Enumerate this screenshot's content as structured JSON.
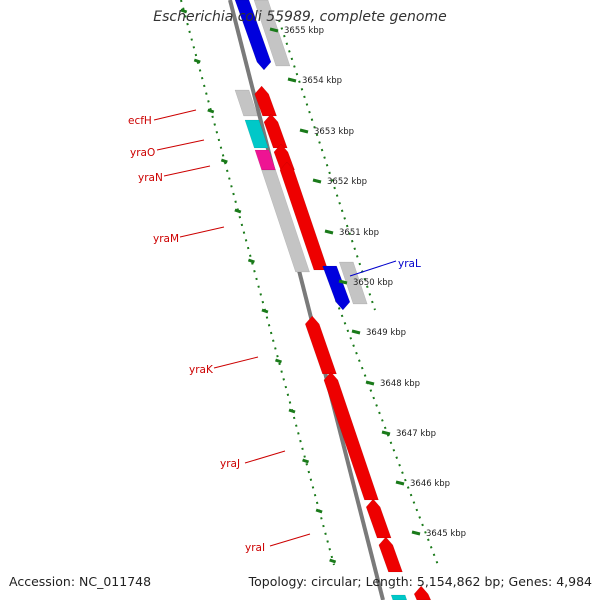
{
  "title": "Escherichia coli 55989, complete genome",
  "accession": "Accession: NC_011748",
  "topology": "Topology: circular; Length: 5,154,862 bp; Genes: 4,984",
  "colors": {
    "backbone": "#7a7a7a",
    "tick": "#1a7a1a",
    "red_gene": "#ee0000",
    "blue_gene": "#0000dd",
    "cyan_gene": "#00c8c8",
    "magenta_gene": "#ee1493",
    "grey_gene": "#c4c4c4",
    "red_label": "#cc0000",
    "blue_label": "#0000cc"
  },
  "kbp_labels": [
    "3655 kbp",
    "3654 kbp",
    "3653 kbp",
    "3652 kbp",
    "3651 kbp",
    "3650 kbp",
    "3649 kbp",
    "3648 kbp",
    "3647 kbp",
    "3646 kbp",
    "3645 kbp"
  ],
  "genes": [
    {
      "name": "ecfH",
      "color": "red"
    },
    {
      "name": "yraO",
      "color": "red"
    },
    {
      "name": "yraN",
      "color": "red"
    },
    {
      "name": "yraM",
      "color": "red"
    },
    {
      "name": "yraL",
      "color": "blue"
    },
    {
      "name": "yraK",
      "color": "red"
    },
    {
      "name": "yraJ",
      "color": "red"
    },
    {
      "name": "yraI",
      "color": "red"
    }
  ]
}
